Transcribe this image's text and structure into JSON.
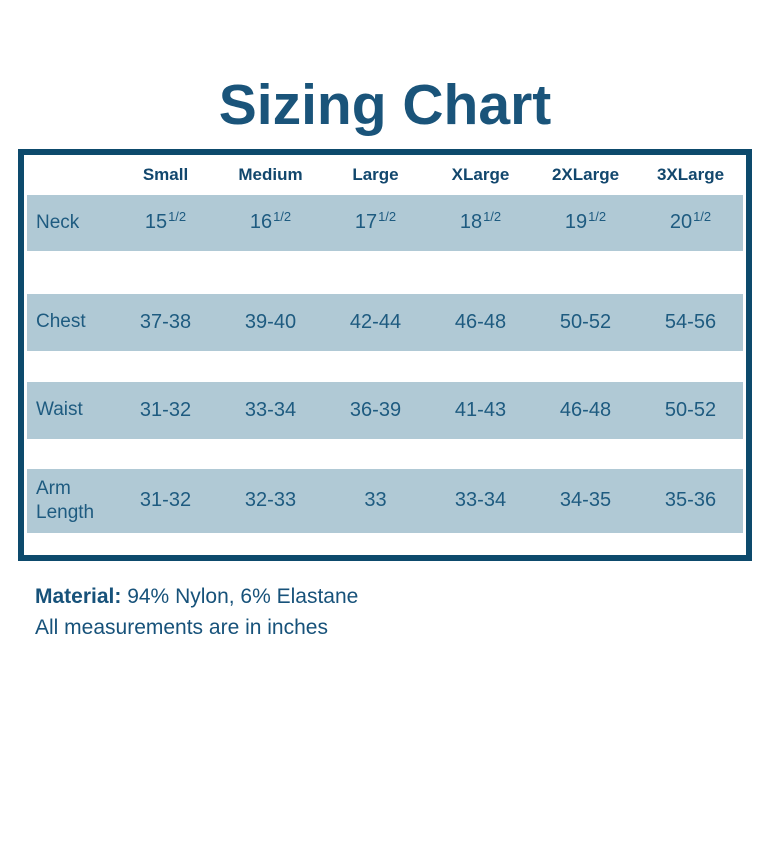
{
  "title": "Sizing Chart",
  "table": {
    "sizes": [
      "Small",
      "Medium",
      "Large",
      "XLarge",
      "2XLarge",
      "3XLarge"
    ],
    "rows": [
      {
        "label": "Neck",
        "values": [
          "15^1/2",
          "16^1/2",
          "17^1/2",
          "18^1/2",
          "19^1/2",
          "20^1/2"
        ]
      },
      {
        "label": "Chest",
        "values": [
          "37-38",
          "39-40",
          "42-44",
          "46-48",
          "50-52",
          "54-56"
        ]
      },
      {
        "label": "Waist",
        "values": [
          "31-32",
          "33-34",
          "36-39",
          "41-43",
          "46-48",
          "50-52"
        ]
      },
      {
        "label": "Arm Length",
        "values": [
          "31-32",
          "32-33",
          "33",
          "33-34",
          "34-35",
          "35-36"
        ]
      }
    ]
  },
  "footer": {
    "material_label": "Material:",
    "material_value": "94% Nylon, 6% Elastane",
    "note": "All measurements are in inches"
  },
  "colors": {
    "border_navy": "#0d4a6c",
    "title_blue": "#1a547a",
    "text_blue": "#1e5b80",
    "row_band_blue": "#b0c9d5",
    "background": "#ffffff"
  },
  "units": "inches"
}
